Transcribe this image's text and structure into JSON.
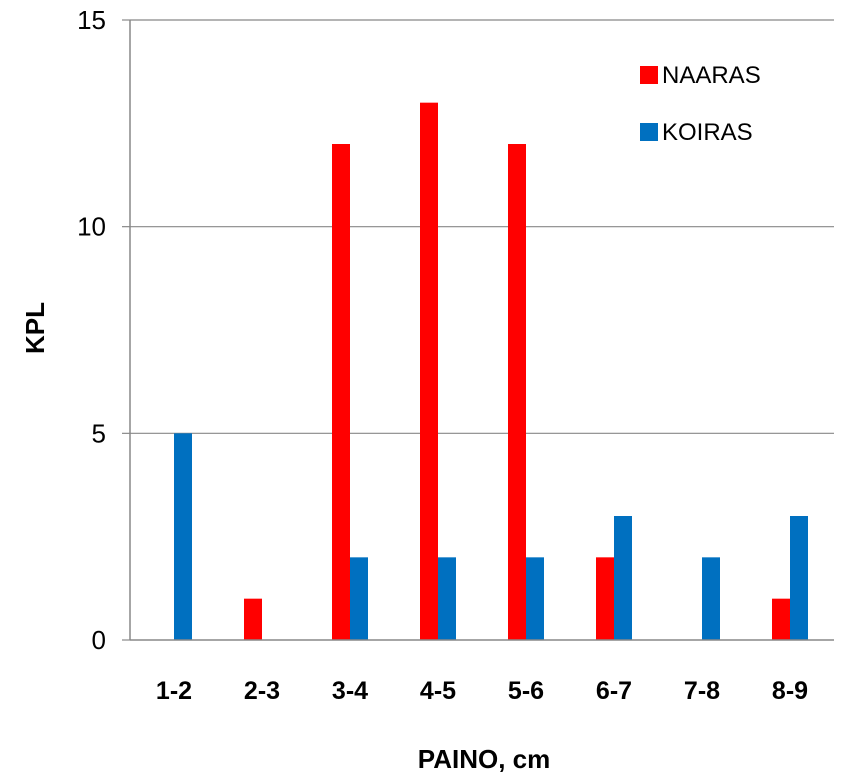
{
  "chart_data": {
    "type": "bar",
    "title": "",
    "xlabel": "PAINO, cm",
    "ylabel": "KPL",
    "categories": [
      "1-2",
      "2-3",
      "3-4",
      "4-5",
      "5-6",
      "6-7",
      "7-8",
      "8-9"
    ],
    "series": [
      {
        "name": "NAARAS",
        "color": "#ff0000",
        "values": [
          0,
          1,
          12,
          13,
          12,
          2,
          0,
          1
        ]
      },
      {
        "name": "KOIRAS",
        "color": "#0070c0",
        "values": [
          5,
          0,
          2,
          2,
          2,
          3,
          2,
          3
        ]
      }
    ],
    "ylim": [
      0,
      15
    ],
    "yticks": [
      0,
      5,
      10,
      15
    ],
    "grid": true,
    "legend_position": "top-right"
  }
}
